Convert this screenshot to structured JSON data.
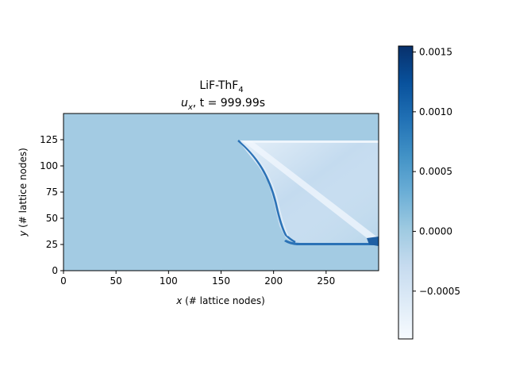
{
  "chart_data": {
    "type": "heatmap",
    "title": {
      "line1_main": "LiF-ThF",
      "line1_sub": "4",
      "line2_var": "u",
      "line2_var_sub": "x",
      "line2_rest": ", t = 999.99s"
    },
    "xlabel": {
      "var": "x",
      "text": " (# lattice nodes)"
    },
    "ylabel": {
      "var": "y",
      "text": " (# lattice nodes)"
    },
    "xlim": [
      0,
      300
    ],
    "ylim": [
      0,
      150
    ],
    "xticks": [
      0,
      50,
      100,
      150,
      200,
      250
    ],
    "yticks": [
      0,
      25,
      50,
      75,
      100,
      125
    ],
    "colorbar": {
      "colormap": "Blues",
      "range": [
        -0.0009,
        0.00155
      ],
      "ticks": [
        -0.0005,
        0.0,
        0.0005,
        0.001,
        0.0015
      ],
      "tick_labels": [
        "−0.0005",
        "0.0000",
        "0.0005",
        "0.0010",
        "0.0015"
      ]
    },
    "colors": {
      "background_field": "#a3cbe3",
      "wedge_light": "#c4dbef",
      "edge_white": "#eef5fc",
      "edge_dark": "#2b72b6",
      "colormap_stops": [
        "#f7fbff",
        "#deebf7",
        "#c6dbef",
        "#9ecae1",
        "#6baed6",
        "#4292c6",
        "#2171b5",
        "#08519c",
        "#08306b"
      ]
    }
  }
}
